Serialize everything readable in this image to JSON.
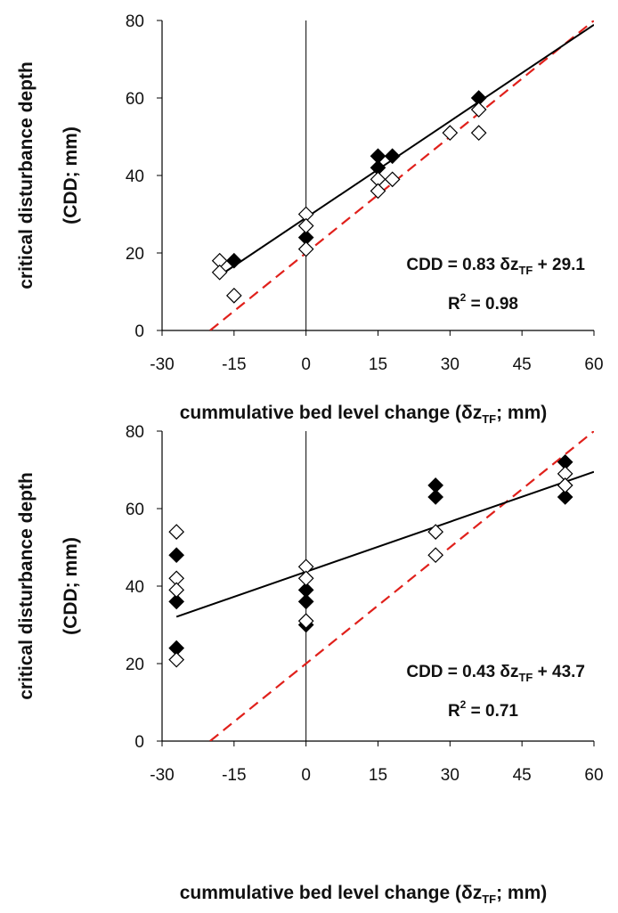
{
  "chart_data": [
    {
      "type": "scatter",
      "xlabel": "cummulative bed level change (δz",
      "xlabel_sub": "TF",
      "xlabel_tail": "; mm)",
      "ylabel_line1": "critical disturbance depth",
      "ylabel_line2": "(CDD; mm)",
      "xlim": [
        -30,
        60
      ],
      "ylim": [
        0,
        80
      ],
      "xticks": [
        -30,
        -15,
        0,
        15,
        30,
        45,
        60
      ],
      "yticks": [
        0,
        20,
        40,
        60,
        80
      ],
      "annotations": {
        "equation_pre": "CDD = 0.83 δz",
        "equation_sub": "TF",
        "equation_post": " + 29.1",
        "r2_pre": "R",
        "r2_sup": "2",
        "r2_post": " = 0.98"
      },
      "series": [
        {
          "marker": "filled-diamond",
          "x": [
            -15,
            0,
            15,
            15,
            18,
            36
          ],
          "y": [
            18,
            24,
            45,
            42,
            45,
            60
          ]
        },
        {
          "marker": "open-diamond",
          "x": [
            -18,
            -18,
            -15,
            0,
            0,
            0,
            15,
            15,
            18,
            30,
            36,
            36
          ],
          "y": [
            18,
            15,
            9,
            30,
            27,
            21,
            39,
            36,
            39,
            51,
            57,
            51
          ]
        }
      ],
      "regression": {
        "slope": 0.83,
        "intercept": 29.1,
        "x_range": [
          -18,
          60
        ],
        "color": "#000000"
      },
      "reference_line": {
        "slope": 1,
        "intercept": 20,
        "x_range": [
          -20,
          60
        ],
        "color": "#e0201b",
        "style": "dashed"
      },
      "grid": false
    },
    {
      "type": "scatter",
      "xlabel": "cummulative bed level change (δz",
      "xlabel_sub": "TF",
      "xlabel_tail": "; mm)",
      "ylabel_line1": "critical disturbance depth",
      "ylabel_line2": "(CDD; mm)",
      "xlim": [
        -30,
        60
      ],
      "ylim": [
        0,
        80
      ],
      "xticks": [
        -30,
        -15,
        0,
        15,
        30,
        45,
        60
      ],
      "yticks": [
        0,
        20,
        40,
        60,
        80
      ],
      "annotations": {
        "equation_pre": "CDD = 0.43 δz",
        "equation_sub": "TF",
        "equation_post": " + 43.7",
        "r2_pre": "R",
        "r2_sup": "2",
        "r2_post": " = 0.71"
      },
      "series": [
        {
          "marker": "filled-diamond",
          "x": [
            -27,
            -27,
            -27,
            0,
            0,
            0,
            27,
            27,
            54,
            54,
            54
          ],
          "y": [
            48,
            36,
            24,
            39,
            36,
            30,
            66,
            63,
            72,
            66,
            63
          ]
        },
        {
          "marker": "open-diamond",
          "x": [
            -27,
            -27,
            -27,
            -27,
            0,
            0,
            0,
            27,
            27,
            54,
            54
          ],
          "y": [
            54,
            42,
            39,
            21,
            45,
            42,
            31,
            54,
            48,
            69,
            66
          ]
        }
      ],
      "regression": {
        "slope": 0.43,
        "intercept": 43.7,
        "x_range": [
          -27,
          60
        ],
        "color": "#000000"
      },
      "reference_line": {
        "slope": 1,
        "intercept": 20,
        "x_range": [
          -20,
          60
        ],
        "color": "#e0201b",
        "style": "dashed"
      },
      "grid": false
    }
  ]
}
